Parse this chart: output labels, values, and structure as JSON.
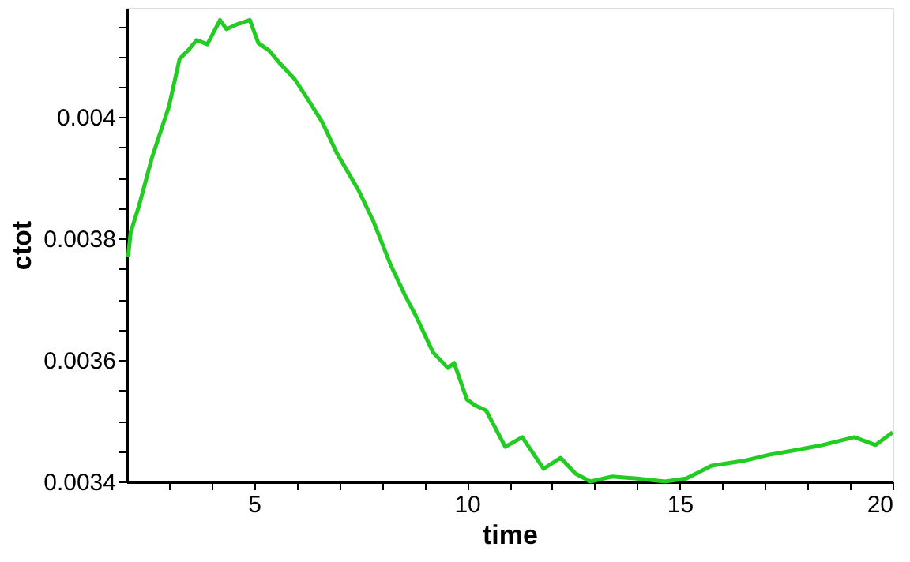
{
  "chart_data": {
    "type": "line",
    "xlabel": "time",
    "ylabel": "ctot",
    "x": [
      2.04,
      2.1,
      2.3,
      2.6,
      3.0,
      3.25,
      3.45,
      3.65,
      3.9,
      4.2,
      4.35,
      4.6,
      4.9,
      5.1,
      5.35,
      5.6,
      5.95,
      6.25,
      6.6,
      6.95,
      7.45,
      7.8,
      8.2,
      8.55,
      8.8,
      9.2,
      9.55,
      9.7,
      10.0,
      10.2,
      10.45,
      10.9,
      11.3,
      11.8,
      12.2,
      12.55,
      12.9,
      13.4,
      14.0,
      14.65,
      15.15,
      15.75,
      16.5,
      17.1,
      17.75,
      18.35,
      19.1,
      19.6,
      20.0
    ],
    "series": [
      {
        "color": "#22cc22",
        "values": [
          0.00377,
          0.00381,
          0.003855,
          0.003933,
          0.004018,
          0.004096,
          0.00411,
          0.004127,
          0.00412,
          0.00416,
          0.004145,
          0.004153,
          0.00416,
          0.004122,
          0.00411,
          0.004089,
          0.004063,
          0.004031,
          0.003992,
          0.00394,
          0.00388,
          0.003829,
          0.003758,
          0.003706,
          0.003673,
          0.003613,
          0.003587,
          0.003595,
          0.003535,
          0.003525,
          0.003517,
          0.003457,
          0.003473,
          0.003421,
          0.003439,
          0.003413,
          0.0034,
          0.003408,
          0.003405,
          0.0034,
          0.003405,
          0.003426,
          0.003434,
          0.003444,
          0.003452,
          0.00346,
          0.003473,
          0.00346,
          0.003481
        ]
      }
    ],
    "xlim": [
      2,
      20
    ],
    "xticks": [
      {
        "value": 3,
        "label": null
      },
      {
        "value": 4,
        "label": null
      },
      5,
      {
        "value": 6,
        "label": null
      },
      {
        "value": 7,
        "label": null
      },
      {
        "value": 8,
        "label": null
      },
      {
        "value": 9,
        "label": null
      },
      10,
      {
        "value": 11,
        "label": null
      },
      {
        "value": 12,
        "label": null
      },
      {
        "value": 13,
        "label": null
      },
      {
        "value": 14,
        "label": null
      },
      15,
      {
        "value": 16,
        "label": null
      },
      {
        "value": 17,
        "label": null
      },
      {
        "value": 18,
        "label": null
      },
      {
        "value": 19,
        "label": null
      },
      20
    ],
    "ylim": [
      0.0034,
      0.00418
    ],
    "yticks": [
      0.0034,
      {
        "value": 0.00345,
        "label": null
      },
      {
        "value": 0.0035,
        "label": null
      },
      {
        "value": 0.00355,
        "label": null
      },
      0.0036,
      {
        "value": 0.00365,
        "label": null
      },
      {
        "value": 0.0037,
        "label": null
      },
      {
        "value": 0.00375,
        "label": null
      },
      0.0038,
      {
        "value": 0.00385,
        "label": null
      },
      {
        "value": 0.0039,
        "label": null
      },
      {
        "value": 0.00395,
        "label": null
      },
      0.004,
      {
        "value": 0.00405,
        "label": null
      },
      {
        "value": 0.0041,
        "label": null
      },
      {
        "value": 0.00415,
        "label": null
      }
    ],
    "grid": false,
    "legend": false,
    "marker": "none",
    "line_style": "solid"
  }
}
